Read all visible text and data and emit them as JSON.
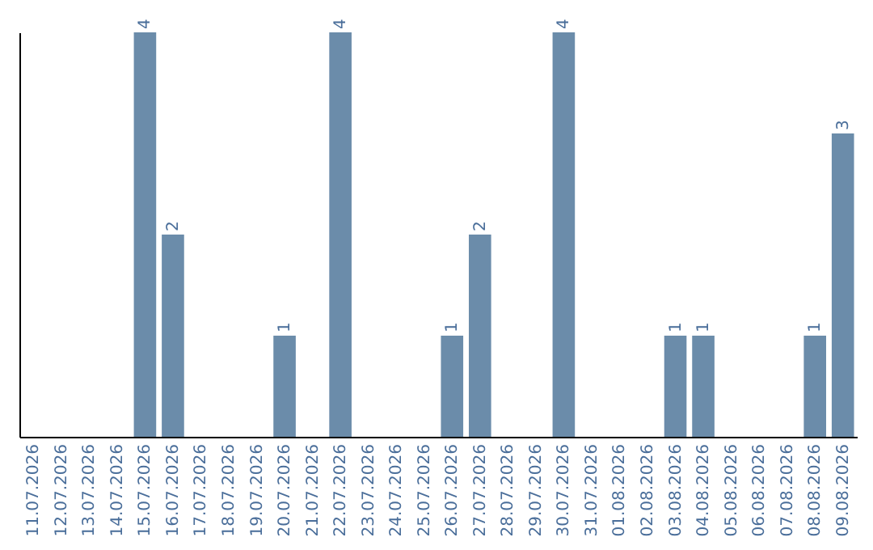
{
  "chart_data": {
    "type": "bar",
    "categories": [
      "11.07.2026",
      "12.07.2026",
      "13.07.2026",
      "14.07.2026",
      "15.07.2026",
      "16.07.2026",
      "17.07.2026",
      "18.07.2026",
      "19.07.2026",
      "20.07.2026",
      "21.07.2026",
      "22.07.2026",
      "23.07.2026",
      "24.07.2026",
      "25.07.2026",
      "26.07.2026",
      "27.07.2026",
      "28.07.2026",
      "29.07.2026",
      "30.07.2026",
      "31.07.2026",
      "01.08.2026",
      "02.08.2026",
      "03.08.2026",
      "04.08.2026",
      "05.08.2026",
      "06.08.2026",
      "07.08.2026",
      "08.08.2026",
      "09.08.2026"
    ],
    "values": [
      0,
      0,
      0,
      0,
      4,
      2,
      0,
      0,
      0,
      1,
      0,
      4,
      0,
      0,
      0,
      1,
      2,
      0,
      0,
      4,
      0,
      0,
      0,
      1,
      1,
      0,
      0,
      0,
      1,
      3
    ],
    "value_labels": [
      null,
      null,
      null,
      null,
      "4",
      "2",
      null,
      null,
      null,
      "1",
      null,
      "4",
      null,
      null,
      null,
      "1",
      "2",
      null,
      null,
      "4",
      null,
      null,
      null,
      "1",
      "1",
      null,
      null,
      null,
      "1",
      "3"
    ],
    "color": "#6b8caa",
    "ylim": [
      0,
      4
    ],
    "tick_labels": "x",
    "grid": false
  }
}
